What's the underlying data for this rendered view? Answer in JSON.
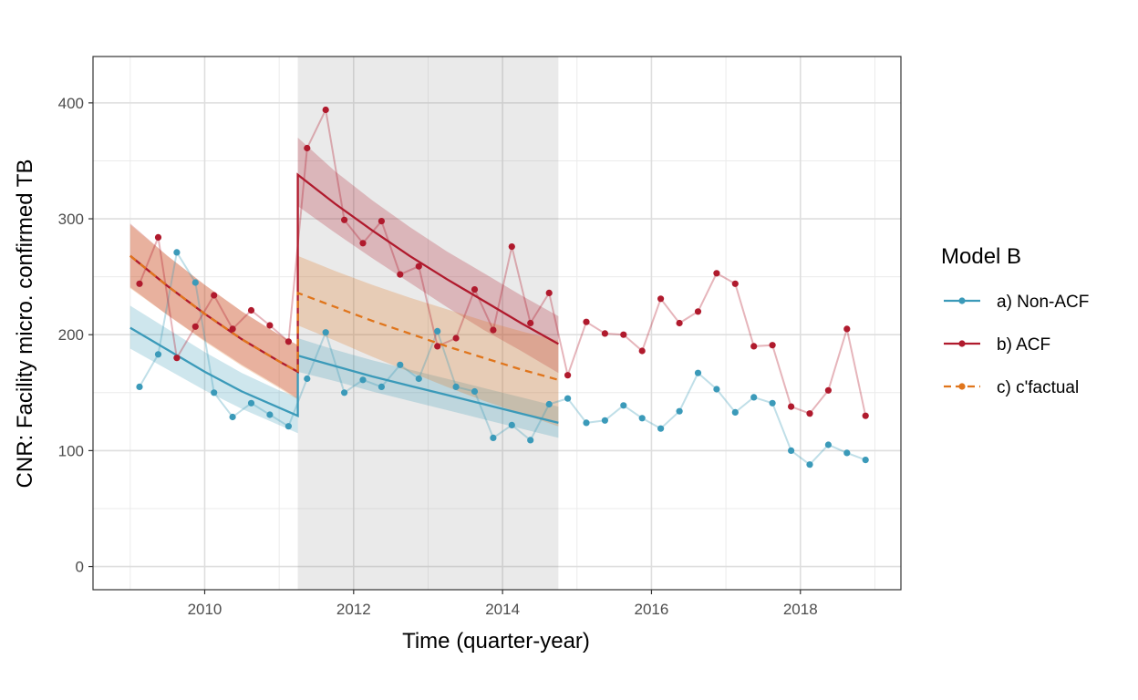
{
  "chart_data": {
    "type": "line",
    "xlabel": "Time (quarter-year)",
    "ylabel": "CNR: Facility micro. confirmed TB",
    "xlim": [
      2008.5,
      2019.35
    ],
    "ylim": [
      -20,
      440
    ],
    "x_ticks": [
      2010,
      2012,
      2014,
      2016,
      2018
    ],
    "y_ticks": [
      0,
      100,
      200,
      300,
      400
    ],
    "grid": true,
    "intervention_period": [
      2011.25,
      2014.75
    ],
    "legend": {
      "title": "Model B",
      "position": "right",
      "entries": [
        {
          "label": "a) Non-ACF",
          "color": "#3b9ab9",
          "dash": false
        },
        {
          "label": "b) ACF",
          "color": "#b01a2d",
          "dash": false
        },
        {
          "label": "c) c'factual",
          "color": "#e0751c",
          "dash": true
        }
      ]
    },
    "observed": [
      {
        "name": "a) Non-ACF",
        "color": "#3b9ab9",
        "x": [
          2009.125,
          2009.375,
          2009.625,
          2009.875,
          2010.125,
          2010.375,
          2010.625,
          2010.875,
          2011.125,
          2011.375,
          2011.625,
          2011.875,
          2012.125,
          2012.375,
          2012.625,
          2012.875,
          2013.125,
          2013.375,
          2013.625,
          2013.875,
          2014.125,
          2014.375,
          2014.625,
          2014.875,
          2015.125,
          2015.375,
          2015.625,
          2015.875,
          2016.125,
          2016.375,
          2016.625,
          2016.875,
          2017.125,
          2017.375,
          2017.625,
          2017.875,
          2018.125,
          2018.375,
          2018.625,
          2018.875
        ],
        "y": [
          155,
          183,
          271,
          245,
          150,
          129,
          141,
          131,
          121,
          162,
          202,
          150,
          161,
          155,
          174,
          162,
          203,
          155,
          151,
          111,
          122,
          109,
          140,
          145,
          124,
          126,
          139,
          128,
          119,
          134,
          167,
          153,
          133,
          146,
          141,
          100,
          88,
          105,
          98,
          92
        ]
      },
      {
        "name": "b) ACF",
        "color": "#b01a2d",
        "x": [
          2009.125,
          2009.375,
          2009.625,
          2009.875,
          2010.125,
          2010.375,
          2010.625,
          2010.875,
          2011.125,
          2011.375,
          2011.625,
          2011.875,
          2012.125,
          2012.375,
          2012.625,
          2012.875,
          2013.125,
          2013.375,
          2013.625,
          2013.875,
          2014.125,
          2014.375,
          2014.625,
          2014.875,
          2015.125,
          2015.375,
          2015.625,
          2015.875,
          2016.125,
          2016.375,
          2016.625,
          2016.875,
          2017.125,
          2017.375,
          2017.625,
          2017.875,
          2018.125,
          2018.375,
          2018.625,
          2018.875
        ],
        "y": [
          244,
          284,
          180,
          207,
          234,
          205,
          221,
          208,
          194,
          361,
          394,
          299,
          279,
          298,
          252,
          259,
          190,
          197,
          239,
          204,
          276,
          210,
          236,
          165,
          211,
          201,
          200,
          186,
          231,
          210,
          220,
          253,
          244,
          190,
          191,
          138,
          132,
          152,
          205,
          130
        ]
      }
    ],
    "fitted": [
      {
        "name": "a) Non-ACF",
        "color": "#3b9ab9",
        "dash": false,
        "pre": {
          "x": [
            2009.0,
            2009.5,
            2010.0,
            2010.5,
            2011.0,
            2011.25
          ],
          "y": [
            206,
            187,
            168,
            151,
            137,
            130
          ],
          "lo": [
            188,
            170,
            152,
            136,
            122,
            115
          ],
          "hi": [
            225,
            205,
            185,
            167,
            152,
            146
          ]
        },
        "post": {
          "x": [
            2011.25,
            2011.75,
            2012.25,
            2012.75,
            2013.25,
            2013.75,
            2014.25,
            2014.75
          ],
          "y": [
            182,
            173,
            164,
            156,
            148,
            140,
            132,
            124
          ],
          "lo": [
            168,
            160,
            151,
            143,
            135,
            127,
            119,
            111
          ],
          "hi": [
            197,
            187,
            178,
            170,
            162,
            154,
            146,
            138
          ]
        }
      },
      {
        "name": "b) ACF",
        "color": "#b01a2d",
        "dash": false,
        "pre": {
          "x": [
            2009.0,
            2009.5,
            2010.0,
            2010.5,
            2011.0,
            2011.25
          ],
          "y": [
            268,
            242,
            218,
            196,
            177,
            168
          ],
          "lo": [
            241,
            217,
            195,
            174,
            155,
            145
          ],
          "hi": [
            296,
            268,
            243,
            220,
            200,
            191
          ]
        },
        "post": {
          "x": [
            2011.25,
            2011.75,
            2012.25,
            2012.75,
            2013.25,
            2013.75,
            2014.25,
            2014.75
          ],
          "y": [
            338,
            313,
            290,
            268,
            248,
            229,
            210,
            192
          ],
          "lo": [
            311,
            288,
            266,
            245,
            224,
            204,
            186,
            167
          ],
          "hi": [
            370,
            341,
            316,
            293,
            272,
            253,
            234,
            216
          ]
        }
      },
      {
        "name": "c) c'factual",
        "color": "#e0751c",
        "dash": true,
        "pre": {
          "x": [
            2009.0,
            2009.5,
            2010.0,
            2010.5,
            2011.0,
            2011.25
          ],
          "y": [
            268,
            242,
            218,
            196,
            177,
            168
          ],
          "lo": [
            240,
            217,
            194,
            173,
            154,
            144
          ],
          "hi": [
            295,
            268,
            243,
            220,
            200,
            191
          ]
        },
        "post": {
          "x": [
            2011.25,
            2011.75,
            2012.25,
            2012.75,
            2013.25,
            2013.75,
            2014.25,
            2014.75
          ],
          "y": [
            236,
            224,
            212,
            201,
            190,
            180,
            170,
            161
          ],
          "lo": [
            208,
            195,
            181,
            168,
            155,
            143,
            132,
            121
          ],
          "hi": [
            268,
            255,
            243,
            232,
            222,
            212,
            203,
            195
          ]
        }
      }
    ]
  }
}
